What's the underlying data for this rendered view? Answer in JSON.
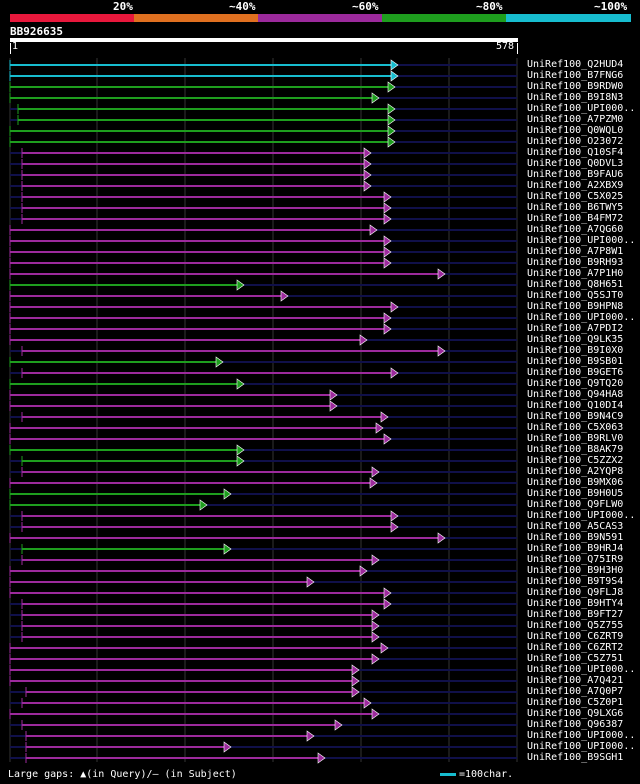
{
  "legend": {
    "labels": [
      "20%",
      "~40%",
      "~60%",
      "~80%",
      "~100%"
    ],
    "colors": [
      "#e8183c",
      "#e07020",
      "#9c2a9c",
      "#1e9e1e",
      "#17bccf"
    ]
  },
  "query": {
    "id": "BB926635",
    "start": "1",
    "end": "578"
  },
  "hits": [
    {
      "label": "UniRef100_Q2HUD4",
      "color": "#17bccf",
      "s": 0,
      "e": 387
    },
    {
      "label": "UniRef100_B7FNG6",
      "color": "#17bccf",
      "s": 0,
      "e": 387
    },
    {
      "label": "UniRef100_B9RDW0",
      "color": "#1e9e1e",
      "s": 0,
      "e": 384
    },
    {
      "label": "UniRef100_B9I8N3",
      "color": "#1e9e1e",
      "s": 0,
      "e": 368
    },
    {
      "label": "UniRef100_UPI000..",
      "color": "#1e9e1e",
      "s": 8,
      "e": 384
    },
    {
      "label": "UniRef100_A7PZM0",
      "color": "#1e9e1e",
      "s": 8,
      "e": 384
    },
    {
      "label": "UniRef100_Q0WQL0",
      "color": "#1e9e1e",
      "s": 0,
      "e": 384
    },
    {
      "label": "UniRef100_O23072",
      "color": "#1e9e1e",
      "s": 0,
      "e": 384
    },
    {
      "label": "UniRef100_Q10SF4",
      "color": "#9c2a9c",
      "s": 12,
      "e": 360
    },
    {
      "label": "UniRef100_Q0DVL3",
      "color": "#9c2a9c",
      "s": 12,
      "e": 360
    },
    {
      "label": "UniRef100_B9FAU6",
      "color": "#9c2a9c",
      "s": 12,
      "e": 360
    },
    {
      "label": "UniRef100_A2XBX9",
      "color": "#9c2a9c",
      "s": 12,
      "e": 360
    },
    {
      "label": "UniRef100_C5X025",
      "color": "#9c2a9c",
      "s": 12,
      "e": 380
    },
    {
      "label": "UniRef100_B6TWY5",
      "color": "#9c2a9c",
      "s": 12,
      "e": 380
    },
    {
      "label": "UniRef100_B4FM72",
      "color": "#9c2a9c",
      "s": 12,
      "e": 380
    },
    {
      "label": "UniRef100_A7QG60",
      "color": "#9c2a9c",
      "s": 0,
      "e": 366
    },
    {
      "label": "UniRef100_UPI000..",
      "color": "#9c2a9c",
      "s": 0,
      "e": 380
    },
    {
      "label": "UniRef100_A7P8W1",
      "color": "#9c2a9c",
      "s": 0,
      "e": 380
    },
    {
      "label": "UniRef100_B9RH93",
      "color": "#9c2a9c",
      "s": 0,
      "e": 380
    },
    {
      "label": "UniRef100_A7P1H0",
      "color": "#9c2a9c",
      "s": 0,
      "e": 434
    },
    {
      "label": "UniRef100_Q8H651",
      "color": "#1e9e1e",
      "s": 0,
      "e": 233
    },
    {
      "label": "UniRef100_Q5SJT0",
      "color": "#9c2a9c",
      "s": 0,
      "e": 277
    },
    {
      "label": "UniRef100_B9HPN8",
      "color": "#9c2a9c",
      "s": 0,
      "e": 387
    },
    {
      "label": "UniRef100_UPI000..",
      "color": "#9c2a9c",
      "s": 0,
      "e": 380
    },
    {
      "label": "UniRef100_A7PDI2",
      "color": "#9c2a9c",
      "s": 0,
      "e": 380
    },
    {
      "label": "UniRef100_Q9LK35",
      "color": "#9c2a9c",
      "s": 0,
      "e": 356
    },
    {
      "label": "UniRef100_B9I0X0",
      "color": "#9c2a9c",
      "s": 12,
      "e": 434
    },
    {
      "label": "UniRef100_B9SB01",
      "color": "#1e9e1e",
      "s": 0,
      "e": 212
    },
    {
      "label": "UniRef100_B9GET6",
      "color": "#9c2a9c",
      "s": 12,
      "e": 387
    },
    {
      "label": "UniRef100_Q9TQ20",
      "color": "#1e9e1e",
      "s": 0,
      "e": 233
    },
    {
      "label": "UniRef100_Q94HA8",
      "color": "#9c2a9c",
      "s": 0,
      "e": 326
    },
    {
      "label": "UniRef100_Q10DI4",
      "color": "#9c2a9c",
      "s": 0,
      "e": 326
    },
    {
      "label": "UniRef100_B9N4C9",
      "color": "#9c2a9c",
      "s": 12,
      "e": 377
    },
    {
      "label": "UniRef100_C5X063",
      "color": "#9c2a9c",
      "s": 0,
      "e": 372
    },
    {
      "label": "UniRef100_B9RLV0",
      "color": "#9c2a9c",
      "s": 0,
      "e": 380
    },
    {
      "label": "UniRef100_B8AK79",
      "color": "#1e9e1e",
      "s": 0,
      "e": 233
    },
    {
      "label": "UniRef100_C5ZZX2",
      "color": "#1e9e1e",
      "s": 12,
      "e": 233
    },
    {
      "label": "UniRef100_A2YQP8",
      "color": "#9c2a9c",
      "s": 12,
      "e": 368
    },
    {
      "label": "UniRef100_B9MX06",
      "color": "#9c2a9c",
      "s": 0,
      "e": 366
    },
    {
      "label": "UniRef100_B9H0U5",
      "color": "#1e9e1e",
      "s": 0,
      "e": 220
    },
    {
      "label": "UniRef100_Q9FLW0",
      "color": "#1e9e1e",
      "s": 0,
      "e": 196
    },
    {
      "label": "UniRef100_UPI000..",
      "color": "#9c2a9c",
      "s": 12,
      "e": 387
    },
    {
      "label": "UniRef100_A5CAS3",
      "color": "#9c2a9c",
      "s": 12,
      "e": 387
    },
    {
      "label": "UniRef100_B9N591",
      "color": "#9c2a9c",
      "s": 0,
      "e": 434
    },
    {
      "label": "UniRef100_B9HRJ4",
      "color": "#1e9e1e",
      "s": 12,
      "e": 220
    },
    {
      "label": "UniRef100_Q75IR9",
      "color": "#9c2a9c",
      "s": 12,
      "e": 368
    },
    {
      "label": "UniRef100_B9H3H0",
      "color": "#9c2a9c",
      "s": 0,
      "e": 356
    },
    {
      "label": "UniRef100_B9T9S4",
      "color": "#9c2a9c",
      "s": 0,
      "e": 303
    },
    {
      "label": "UniRef100_Q9FLJ8",
      "color": "#9c2a9c",
      "s": 0,
      "e": 380
    },
    {
      "label": "UniRef100_B9HTY4",
      "color": "#9c2a9c",
      "s": 12,
      "e": 380
    },
    {
      "label": "UniRef100_B9FT27",
      "color": "#9c2a9c",
      "s": 12,
      "e": 368
    },
    {
      "label": "UniRef100_Q5Z755",
      "color": "#9c2a9c",
      "s": 12,
      "e": 368
    },
    {
      "label": "UniRef100_C6ZRT9",
      "color": "#9c2a9c",
      "s": 12,
      "e": 368
    },
    {
      "label": "UniRef100_C6ZRT2",
      "color": "#9c2a9c",
      "s": 0,
      "e": 377
    },
    {
      "label": "UniRef100_C5Z751",
      "color": "#9c2a9c",
      "s": 0,
      "e": 368
    },
    {
      "label": "UniRef100_UPI000..",
      "color": "#9c2a9c",
      "s": 0,
      "e": 348
    },
    {
      "label": "UniRef100_A7Q421",
      "color": "#9c2a9c",
      "s": 0,
      "e": 348
    },
    {
      "label": "UniRef100_A7Q0P7",
      "color": "#9c2a9c",
      "s": 16,
      "e": 348
    },
    {
      "label": "UniRef100_C5Z0P1",
      "color": "#9c2a9c",
      "s": 12,
      "e": 360
    },
    {
      "label": "UniRef100_Q9LXG6",
      "color": "#9c2a9c",
      "s": 0,
      "e": 368
    },
    {
      "label": "UniRef100_Q96387",
      "color": "#9c2a9c",
      "s": 12,
      "e": 331
    },
    {
      "label": "UniRef100_UPI000..",
      "color": "#9c2a9c",
      "s": 16,
      "e": 303
    },
    {
      "label": "UniRef100_UPI000..",
      "color": "#9c2a9c",
      "s": 16,
      "e": 220
    },
    {
      "label": "UniRef100_B9SGH1",
      "color": "#9c2a9c",
      "s": 16,
      "e": 314
    }
  ],
  "footer": {
    "gaps_text": "Large gaps: ▲(in Query)/— (in Subject)",
    "scale_text": "=100char."
  }
}
